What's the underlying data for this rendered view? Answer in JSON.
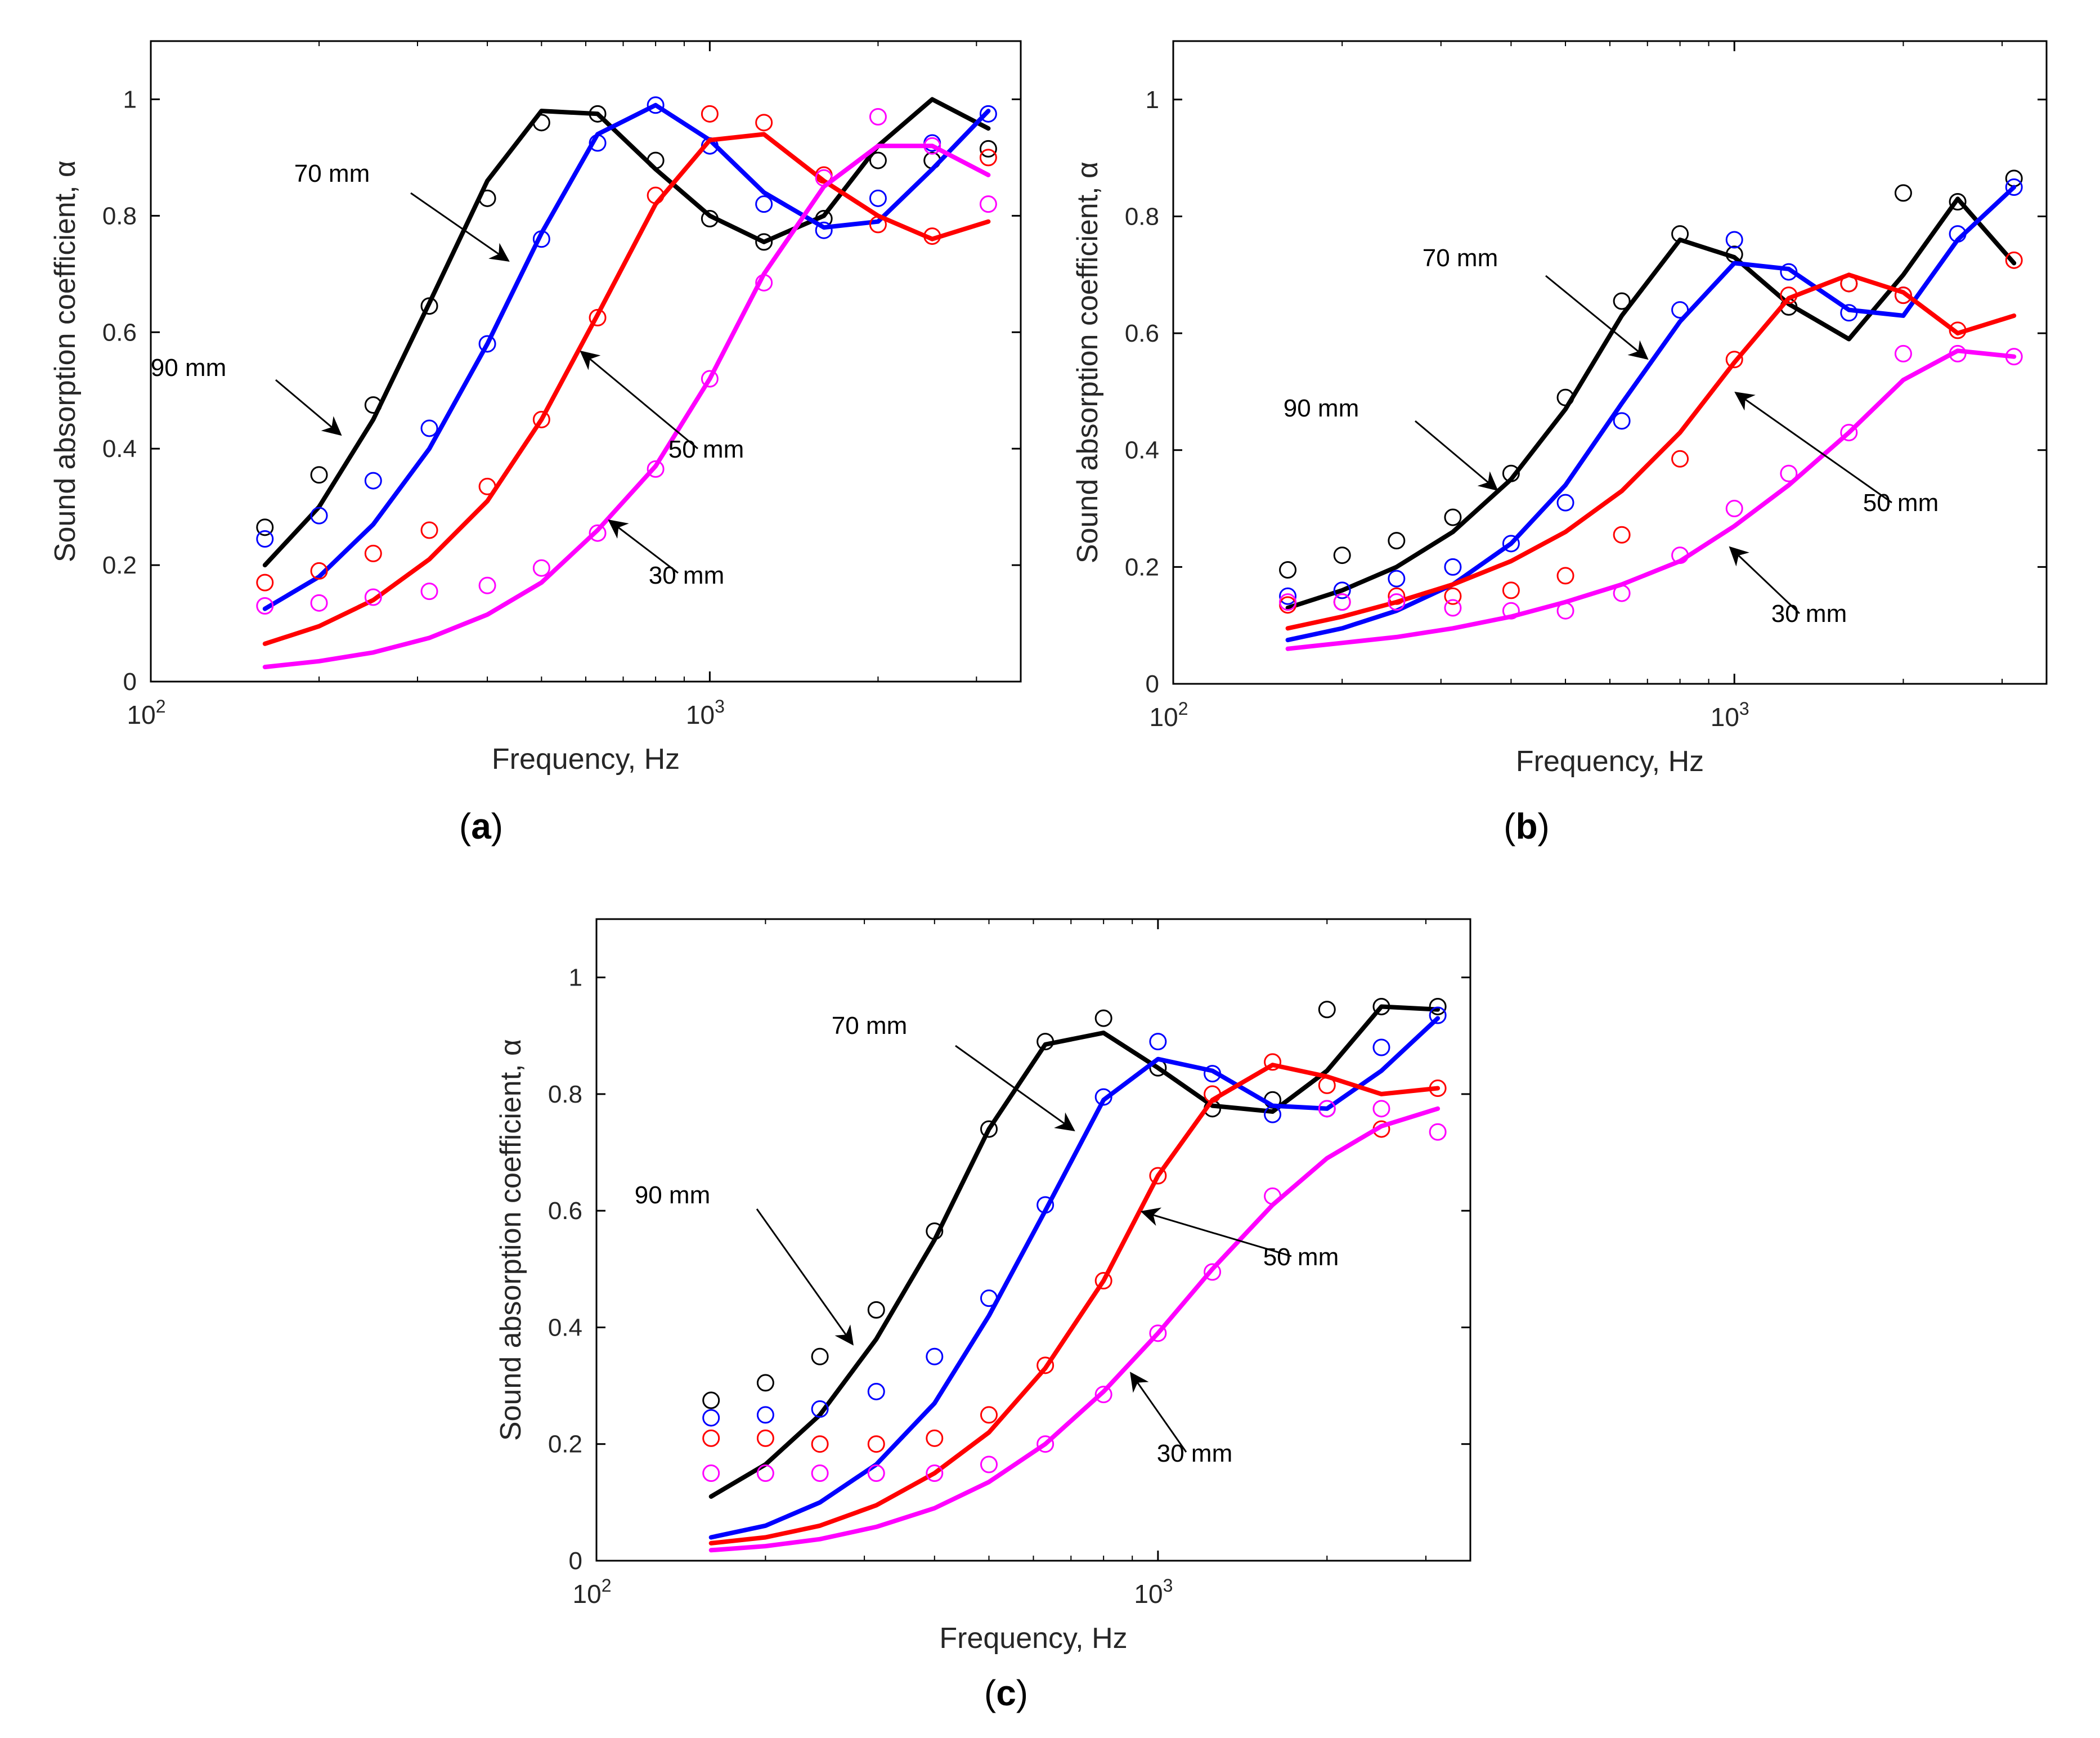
{
  "figure": {
    "panel_letters": [
      "a",
      "b",
      "c"
    ]
  },
  "colors": {
    "90mm": "#000000",
    "70mm": "#0000ff",
    "50mm": "#ff0000",
    "30mm": "#ff00ff",
    "axis": "#000000",
    "background": "#ffffff"
  },
  "chart_data": [
    {
      "type": "line",
      "panel": "a",
      "title": "",
      "xlabel": "Frequency, Hz",
      "ylabel": "Sound absorption coefficient, α",
      "xscale": "log",
      "xlim": [
        100,
        3600
      ],
      "ylim": [
        0,
        1.1
      ],
      "xticks": [
        100,
        1000
      ],
      "xtick_labels": [
        {
          "base": "10",
          "exp": "2"
        },
        {
          "base": "10",
          "exp": "3"
        }
      ],
      "yticks": [
        0,
        0.2,
        0.4,
        0.6,
        0.8,
        1
      ],
      "ytick_labels": [
        "0",
        "0.2",
        "0.4",
        "0.6",
        "0.8",
        "1"
      ],
      "x": [
        160,
        200,
        250,
        315,
        400,
        500,
        630,
        800,
        1000,
        1250,
        1600,
        2000,
        2500,
        3150
      ],
      "series": [
        {
          "name": "90 mm",
          "color": "#000000",
          "model": [
            0.2,
            0.3,
            0.45,
            0.65,
            0.86,
            0.98,
            0.975,
            0.88,
            0.8,
            0.755,
            0.8,
            0.92,
            1.0,
            0.95
          ],
          "measured": [
            0.265,
            0.355,
            0.475,
            0.645,
            0.83,
            0.96,
            0.975,
            0.895,
            0.795,
            0.755,
            0.795,
            0.895,
            0.895,
            0.915
          ]
        },
        {
          "name": "70 mm",
          "color": "#0000ff",
          "model": [
            0.125,
            0.18,
            0.27,
            0.4,
            0.58,
            0.77,
            0.94,
            0.99,
            0.93,
            0.84,
            0.78,
            0.79,
            0.88,
            0.98
          ],
          "measured": [
            0.245,
            0.285,
            0.345,
            0.435,
            0.58,
            0.76,
            0.925,
            0.99,
            0.92,
            0.82,
            0.775,
            0.83,
            0.925,
            0.975
          ]
        },
        {
          "name": "50 mm",
          "color": "#ff0000",
          "model": [
            0.065,
            0.095,
            0.14,
            0.21,
            0.31,
            0.45,
            0.63,
            0.82,
            0.93,
            0.94,
            0.86,
            0.8,
            0.76,
            0.79
          ],
          "measured": [
            0.17,
            0.19,
            0.22,
            0.26,
            0.335,
            0.45,
            0.625,
            0.835,
            0.975,
            0.96,
            0.87,
            0.785,
            0.765,
            0.9
          ]
        },
        {
          "name": "30 mm",
          "color": "#ff00ff",
          "model": [
            0.025,
            0.035,
            0.05,
            0.075,
            0.115,
            0.17,
            0.26,
            0.37,
            0.52,
            0.7,
            0.85,
            0.92,
            0.92,
            0.87
          ],
          "measured": [
            0.13,
            0.135,
            0.145,
            0.155,
            0.165,
            0.195,
            0.255,
            0.365,
            0.52,
            0.685,
            0.865,
            0.97,
            0.92,
            0.82
          ]
        }
      ],
      "annotations": [
        "90 mm",
        "70 mm",
        "50 mm",
        "30 mm"
      ]
    },
    {
      "type": "line",
      "panel": "b",
      "title": "",
      "xlabel": "Frequency, Hz",
      "ylabel": "Sound absorption coefficient, α",
      "xscale": "log",
      "xlim": [
        100,
        3600
      ],
      "ylim": [
        0,
        1.1
      ],
      "xticks": [
        100,
        1000
      ],
      "xtick_labels": [
        {
          "base": "10",
          "exp": "2"
        },
        {
          "base": "10",
          "exp": "3"
        }
      ],
      "yticks": [
        0,
        0.2,
        0.4,
        0.6,
        0.8,
        1
      ],
      "ytick_labels": [
        "0",
        "0.2",
        "0.4",
        "0.6",
        "0.8",
        "1"
      ],
      "x": [
        160,
        200,
        250,
        315,
        400,
        500,
        630,
        800,
        1000,
        1250,
        1600,
        2000,
        2500,
        3150
      ],
      "series": [
        {
          "name": "90 mm",
          "color": "#000000",
          "model": [
            0.13,
            0.16,
            0.2,
            0.26,
            0.35,
            0.47,
            0.63,
            0.76,
            0.73,
            0.65,
            0.59,
            0.7,
            0.83,
            0.72
          ],
          "measured": [
            0.195,
            0.22,
            0.245,
            0.285,
            0.36,
            0.49,
            0.655,
            0.77,
            0.735,
            0.645,
            0.685,
            0.84,
            0.825,
            0.865
          ]
        },
        {
          "name": "70 mm",
          "color": "#0000ff",
          "model": [
            0.075,
            0.095,
            0.125,
            0.17,
            0.24,
            0.34,
            0.48,
            0.62,
            0.72,
            0.71,
            0.64,
            0.63,
            0.76,
            0.85
          ],
          "measured": [
            0.15,
            0.16,
            0.18,
            0.2,
            0.24,
            0.31,
            0.45,
            0.64,
            0.76,
            0.705,
            0.635,
            0.665,
            0.77,
            0.85
          ]
        },
        {
          "name": "50 mm",
          "color": "#ff0000",
          "model": [
            0.095,
            0.115,
            0.14,
            0.17,
            0.21,
            0.26,
            0.33,
            0.43,
            0.55,
            0.66,
            0.7,
            0.67,
            0.6,
            0.63
          ],
          "measured": [
            0.135,
            0.14,
            0.15,
            0.15,
            0.16,
            0.185,
            0.255,
            0.385,
            0.555,
            0.665,
            0.685,
            0.665,
            0.605,
            0.725
          ]
        },
        {
          "name": "30 mm",
          "color": "#ff00ff",
          "model": [
            0.06,
            0.07,
            0.08,
            0.095,
            0.115,
            0.14,
            0.17,
            0.21,
            0.27,
            0.34,
            0.43,
            0.52,
            0.57,
            0.56
          ],
          "measured": [
            0.14,
            0.14,
            0.14,
            0.13,
            0.125,
            0.125,
            0.155,
            0.22,
            0.3,
            0.36,
            0.43,
            0.565,
            0.565,
            0.56
          ]
        }
      ],
      "annotations": [
        "90 mm",
        "70 mm",
        "50 mm",
        "30 mm"
      ]
    },
    {
      "type": "line",
      "panel": "c",
      "title": "",
      "xlabel": "Frequency, Hz",
      "ylabel": "Sound absorption coefficient, α",
      "xscale": "log",
      "xlim": [
        100,
        3600
      ],
      "ylim": [
        0,
        1.1
      ],
      "xticks": [
        100,
        1000
      ],
      "xtick_labels": [
        {
          "base": "10",
          "exp": "2"
        },
        {
          "base": "10",
          "exp": "3"
        }
      ],
      "yticks": [
        0,
        0.2,
        0.4,
        0.6,
        0.8,
        1
      ],
      "ytick_labels": [
        "0",
        "0.2",
        "0.4",
        "0.6",
        "0.8",
        "1"
      ],
      "x": [
        160,
        200,
        250,
        315,
        400,
        500,
        630,
        800,
        1000,
        1250,
        1600,
        2000,
        2500,
        3150
      ],
      "series": [
        {
          "name": "90 mm",
          "color": "#000000",
          "model": [
            0.11,
            0.165,
            0.25,
            0.38,
            0.55,
            0.74,
            0.885,
            0.905,
            0.845,
            0.78,
            0.77,
            0.84,
            0.95,
            0.945
          ],
          "measured": [
            0.275,
            0.305,
            0.35,
            0.43,
            0.565,
            0.74,
            0.89,
            0.93,
            0.845,
            0.775,
            0.79,
            0.945,
            0.95,
            0.95
          ]
        },
        {
          "name": "70 mm",
          "color": "#0000ff",
          "model": [
            0.04,
            0.06,
            0.1,
            0.165,
            0.27,
            0.42,
            0.6,
            0.79,
            0.86,
            0.84,
            0.78,
            0.775,
            0.84,
            0.93
          ],
          "measured": [
            0.245,
            0.25,
            0.26,
            0.29,
            0.35,
            0.45,
            0.61,
            0.795,
            0.89,
            0.835,
            0.765,
            0.775,
            0.88,
            0.935
          ]
        },
        {
          "name": "50 mm",
          "color": "#ff0000",
          "model": [
            0.03,
            0.04,
            0.06,
            0.095,
            0.15,
            0.22,
            0.33,
            0.48,
            0.66,
            0.79,
            0.85,
            0.83,
            0.8,
            0.81
          ],
          "measured": [
            0.21,
            0.21,
            0.2,
            0.2,
            0.21,
            0.25,
            0.335,
            0.48,
            0.66,
            0.8,
            0.855,
            0.815,
            0.74,
            0.81
          ]
        },
        {
          "name": "30 mm",
          "color": "#ff00ff",
          "model": [
            0.018,
            0.025,
            0.037,
            0.058,
            0.09,
            0.135,
            0.2,
            0.29,
            0.39,
            0.5,
            0.61,
            0.69,
            0.745,
            0.775
          ],
          "measured": [
            0.15,
            0.15,
            0.15,
            0.15,
            0.15,
            0.165,
            0.2,
            0.285,
            0.39,
            0.495,
            0.625,
            0.775,
            0.775,
            0.735
          ]
        }
      ],
      "annotations": [
        "90 mm",
        "70 mm",
        "50 mm",
        "30 mm"
      ]
    }
  ]
}
